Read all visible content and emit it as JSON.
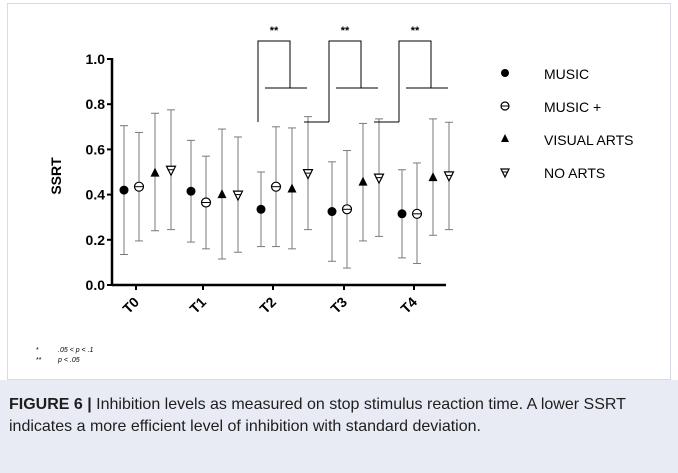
{
  "chart_data": {
    "type": "scatter",
    "ylabel": "SSRT",
    "xlabel": "",
    "ylim": [
      0.0,
      1.0
    ],
    "yticks": [
      "0.0",
      "0.2",
      "0.4",
      "0.6",
      "0.8",
      "1.0"
    ],
    "categories": [
      "T0",
      "T1",
      "T2",
      "T3",
      "T4"
    ],
    "series": [
      {
        "name": "MUSIC",
        "marker": "filled-circle",
        "values": [
          0.42,
          0.415,
          0.335,
          0.325,
          0.315
        ],
        "upper": [
          0.705,
          0.64,
          0.5,
          0.545,
          0.51
        ],
        "lower": [
          0.135,
          0.19,
          0.17,
          0.105,
          0.12
        ]
      },
      {
        "name": "MUSIC +",
        "marker": "open-circle",
        "values": [
          0.435,
          0.365,
          0.435,
          0.335,
          0.315
        ],
        "upper": [
          0.675,
          0.57,
          0.7,
          0.595,
          0.54
        ],
        "lower": [
          0.195,
          0.16,
          0.17,
          0.075,
          0.095
        ]
      },
      {
        "name": "VISUAL ARTS",
        "marker": "filled-triangle",
        "values": [
          0.495,
          0.4,
          0.425,
          0.455,
          0.475
        ],
        "upper": [
          0.76,
          0.69,
          0.695,
          0.715,
          0.735
        ],
        "lower": [
          0.24,
          0.115,
          0.16,
          0.195,
          0.22
        ]
      },
      {
        "name": "NO ARTS",
        "marker": "open-inverted-triangle",
        "values": [
          0.51,
          0.4,
          0.495,
          0.475,
          0.485
        ],
        "upper": [
          0.775,
          0.655,
          0.745,
          0.735,
          0.72
        ],
        "lower": [
          0.245,
          0.145,
          0.245,
          0.215,
          0.245
        ]
      }
    ],
    "significance": [
      {
        "category": "T2",
        "label": "**"
      },
      {
        "category": "T3",
        "label": "**"
      },
      {
        "category": "T4",
        "label": "**"
      }
    ],
    "legend_position": "right",
    "grid": false
  },
  "notes": [
    {
      "symbol": "*",
      "text": ".05 < p < .1"
    },
    {
      "symbol": "**",
      "text": "p < .05"
    }
  ],
  "caption": {
    "label": "FIGURE 6 |",
    "text": " Inhibition levels as measured on stop stimulus reaction time. A lower SSRT indicates a more efficient level of inhibition with standard deviation."
  },
  "colors": {
    "caption_bg": "#e8ebf4",
    "border": "#d6dbe6",
    "ink": "#000000"
  }
}
